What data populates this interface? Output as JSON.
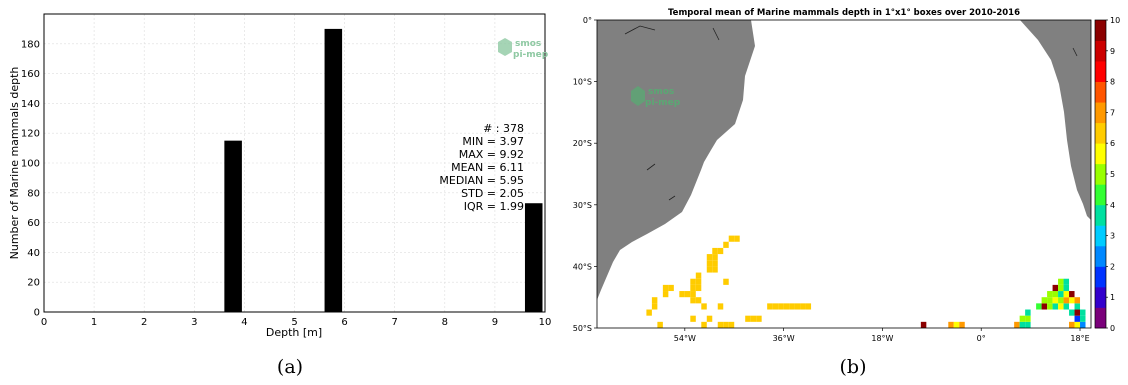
{
  "chart_data": [
    {
      "type": "bar",
      "title": "",
      "xlabel": "Depth [m]",
      "ylabel": "Number of Marine mammals depth",
      "xlim": [
        0,
        10
      ],
      "ylim": [
        0,
        200
      ],
      "xticks": [
        "0",
        "1",
        "2",
        "3",
        "4",
        "5",
        "6",
        "7",
        "8",
        "9",
        "10"
      ],
      "yticks": [
        "0",
        "20",
        "40",
        "60",
        "80",
        "100",
        "120",
        "140",
        "160",
        "180"
      ],
      "bars": [
        {
          "x_from": 3.6,
          "x_to": 3.95,
          "value": 115
        },
        {
          "x_from": 5.6,
          "x_to": 5.95,
          "value": 190
        },
        {
          "x_from": 9.6,
          "x_to": 9.95,
          "value": 73
        }
      ],
      "bar_color": "#000000",
      "grid": true,
      "stats": [
        "# : 378",
        "MIN = 3.97",
        "MAX =  9.92",
        "MEAN = 6.11",
        "MEDIAN = 5.95",
        "STD = 2.05",
        "IQR = 1.99"
      ],
      "logo": {
        "line1": "smos",
        "line2": "pi-mep"
      },
      "caption": "(a)"
    },
    {
      "type": "heatmap",
      "title": "Temporal mean of Marine mammals depth in 1°x1° boxes over 2010-2016",
      "xlim": [
        -70,
        20
      ],
      "ylim": [
        -50,
        0
      ],
      "xticks": [
        {
          "lon": -54,
          "label": "54°W"
        },
        {
          "lon": -36,
          "label": "36°W"
        },
        {
          "lon": -18,
          "label": "18°W"
        },
        {
          "lon": 0,
          "label": "0°"
        },
        {
          "lon": 18,
          "label": "18°E"
        }
      ],
      "yticks": [
        {
          "lat": 0,
          "label": "0°"
        },
        {
          "lat": -10,
          "label": "10°S"
        },
        {
          "lat": -20,
          "label": "20°S"
        },
        {
          "lat": -30,
          "label": "30°S"
        },
        {
          "lat": -40,
          "label": "40°S"
        },
        {
          "lat": -50,
          "label": "50°S"
        }
      ],
      "colorbar": {
        "min": 0,
        "max": 10,
        "ticks": [
          "0",
          "1",
          "2",
          "3",
          "4",
          "5",
          "6",
          "7",
          "8",
          "9",
          "10"
        ],
        "colors": [
          "#7a007a",
          "#3300cc",
          "#0033ff",
          "#0088ff",
          "#00ccff",
          "#00e0a0",
          "#33ff33",
          "#99ff00",
          "#ffff00",
          "#ffcc00",
          "#ff9900",
          "#ff5500",
          "#ff0000",
          "#cc0000",
          "#8b0000"
        ]
      },
      "land_color": "#808080",
      "cells": [
        {
          "lon": -46,
          "lat": -35,
          "value": 6.1
        },
        {
          "lon": -45,
          "lat": -35,
          "value": 6.1
        },
        {
          "lon": -47,
          "lat": -36,
          "value": 6.1
        },
        {
          "lon": -49,
          "lat": -37,
          "value": 6.1
        },
        {
          "lon": -48,
          "lat": -37,
          "value": 6.1
        },
        {
          "lon": -50,
          "lat": -38,
          "value": 6.1
        },
        {
          "lon": -49,
          "lat": -38,
          "value": 6.1
        },
        {
          "lon": -50,
          "lat": -39,
          "value": 6.1
        },
        {
          "lon": -49,
          "lat": -39,
          "value": 6.1
        },
        {
          "lon": -50,
          "lat": -40,
          "value": 6.1
        },
        {
          "lon": -49,
          "lat": -40,
          "value": 6.1
        },
        {
          "lon": -52,
          "lat": -41,
          "value": 6.1
        },
        {
          "lon": -53,
          "lat": -42,
          "value": 6.1
        },
        {
          "lon": -52,
          "lat": -42,
          "value": 6.1
        },
        {
          "lon": -47,
          "lat": -42,
          "value": 6.1
        },
        {
          "lon": -58,
          "lat": -43,
          "value": 6.1
        },
        {
          "lon": -57,
          "lat": -43,
          "value": 6.1
        },
        {
          "lon": -53,
          "lat": -43,
          "value": 6.1
        },
        {
          "lon": -52,
          "lat": -43,
          "value": 6.1
        },
        {
          "lon": -58,
          "lat": -44,
          "value": 6.1
        },
        {
          "lon": -55,
          "lat": -44,
          "value": 6.1
        },
        {
          "lon": -54,
          "lat": -44,
          "value": 6.1
        },
        {
          "lon": -53,
          "lat": -44,
          "value": 6.1
        },
        {
          "lon": -60,
          "lat": -45,
          "value": 6.1
        },
        {
          "lon": -53,
          "lat": -45,
          "value": 6.1
        },
        {
          "lon": -52,
          "lat": -45,
          "value": 6.1
        },
        {
          "lon": -60,
          "lat": -46,
          "value": 6.1
        },
        {
          "lon": -51,
          "lat": -46,
          "value": 6.1
        },
        {
          "lon": -48,
          "lat": -46,
          "value": 6.1
        },
        {
          "lon": -39,
          "lat": -46,
          "value": 6.1
        },
        {
          "lon": -38,
          "lat": -46,
          "value": 6.1
        },
        {
          "lon": -37,
          "lat": -46,
          "value": 6.1
        },
        {
          "lon": -36,
          "lat": -46,
          "value": 6.1
        },
        {
          "lon": -35,
          "lat": -46,
          "value": 6.1
        },
        {
          "lon": -34,
          "lat": -46,
          "value": 6.1
        },
        {
          "lon": -33,
          "lat": -46,
          "value": 6.1
        },
        {
          "lon": -32,
          "lat": -46,
          "value": 6.1
        },
        {
          "lon": -61,
          "lat": -47,
          "value": 6.1
        },
        {
          "lon": -53,
          "lat": -48,
          "value": 6.1
        },
        {
          "lon": -50,
          "lat": -48,
          "value": 6.1
        },
        {
          "lon": -43,
          "lat": -48,
          "value": 6.1
        },
        {
          "lon": -42,
          "lat": -48,
          "value": 6.1
        },
        {
          "lon": -41,
          "lat": -48,
          "value": 6.1
        },
        {
          "lon": -59,
          "lat": -49,
          "value": 6.1
        },
        {
          "lon": -51,
          "lat": -49,
          "value": 6.1
        },
        {
          "lon": -48,
          "lat": -49,
          "value": 6.1
        },
        {
          "lon": -47,
          "lat": -49,
          "value": 6.1
        },
        {
          "lon": -46,
          "lat": -49,
          "value": 6.1
        },
        {
          "lon": -11,
          "lat": -49,
          "value": 9.9
        },
        {
          "lon": -6,
          "lat": -49,
          "value": 7.0
        },
        {
          "lon": -5,
          "lat": -49,
          "value": 5.8
        },
        {
          "lon": -4,
          "lat": -49,
          "value": 7.0
        },
        {
          "lon": 6,
          "lat": -49,
          "value": 7.0
        },
        {
          "lon": 7,
          "lat": -49,
          "value": 3.8
        },
        {
          "lon": 8,
          "lat": -49,
          "value": 3.8
        },
        {
          "lon": 16,
          "lat": -49,
          "value": 7.0
        },
        {
          "lon": 17,
          "lat": -49,
          "value": 5.8
        },
        {
          "lon": 18,
          "lat": -49,
          "value": 2.0
        },
        {
          "lon": 7,
          "lat": -48,
          "value": 5.0
        },
        {
          "lon": 8,
          "lat": -48,
          "value": 5.0
        },
        {
          "lon": 17,
          "lat": -48,
          "value": 1.8
        },
        {
          "lon": 18,
          "lat": -48,
          "value": 3.5
        },
        {
          "lon": 8,
          "lat": -47,
          "value": 3.8
        },
        {
          "lon": 16,
          "lat": -47,
          "value": 3.5
        },
        {
          "lon": 17,
          "lat": -47,
          "value": 9.9
        },
        {
          "lon": 18,
          "lat": -47,
          "value": 3.5
        },
        {
          "lon": 10,
          "lat": -46,
          "value": 4.5
        },
        {
          "lon": 11,
          "lat": -46,
          "value": 9.9
        },
        {
          "lon": 12,
          "lat": -46,
          "value": 5.0
        },
        {
          "lon": 13,
          "lat": -46,
          "value": 3.8
        },
        {
          "lon": 14,
          "lat": -46,
          "value": 5.8
        },
        {
          "lon": 15,
          "lat": -46,
          "value": 3.8
        },
        {
          "lon": 17,
          "lat": -46,
          "value": 3.8
        },
        {
          "lon": 11,
          "lat": -45,
          "value": 5.0
        },
        {
          "lon": 12,
          "lat": -45,
          "value": 5.0
        },
        {
          "lon": 13,
          "lat": -45,
          "value": 5.5
        },
        {
          "lon": 14,
          "lat": -45,
          "value": 5.0
        },
        {
          "lon": 15,
          "lat": -45,
          "value": 7.0
        },
        {
          "lon": 16,
          "lat": -45,
          "value": 5.8
        },
        {
          "lon": 17,
          "lat": -45,
          "value": 7.0
        },
        {
          "lon": 12,
          "lat": -44,
          "value": 5.0
        },
        {
          "lon": 13,
          "lat": -44,
          "value": 5.0
        },
        {
          "lon": 14,
          "lat": -44,
          "value": 3.8
        },
        {
          "lon": 15,
          "lat": -44,
          "value": 5.8
        },
        {
          "lon": 16,
          "lat": -44,
          "value": 9.9
        },
        {
          "lon": 13,
          "lat": -43,
          "value": 9.9
        },
        {
          "lon": 14,
          "lat": -43,
          "value": 5.0
        },
        {
          "lon": 15,
          "lat": -43,
          "value": 3.8
        },
        {
          "lon": 14,
          "lat": -42,
          "value": 5.0
        },
        {
          "lon": 15,
          "lat": -42,
          "value": 3.8
        }
      ],
      "logo": {
        "line1": "smos",
        "line2": "pi-mep"
      },
      "caption": "(b)"
    }
  ]
}
